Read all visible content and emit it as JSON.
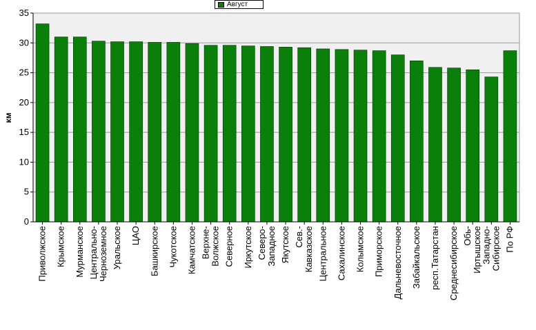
{
  "chart_data": {
    "type": "bar",
    "title": "",
    "xlabel": "",
    "ylabel": "км",
    "ylim": [
      0,
      35
    ],
    "yticks": [
      0,
      5,
      10,
      15,
      20,
      25,
      30,
      35
    ],
    "grid": true,
    "legend_position": "top-center",
    "categories": [
      "Приволжское",
      "Крымское",
      "Мурманское",
      "Центрально-\nЧерноземное",
      "Уральское",
      "ЦАО",
      "Башкирское",
      "Чукотское",
      "Камчатское",
      "Верхне-\nВолжское",
      "Северное",
      "Иркутское",
      "Северо-\nЗападное",
      "Якутское",
      "Сев.-\nКавказское",
      "Центральное",
      "Сахалинское",
      "Колымское",
      "Приморское",
      "Дальневосточное",
      "Забайкальское",
      "респ.Татарстан",
      "Среднесибирское",
      "Обь-\nИртышское",
      "Западно-\nСибирское",
      "По РФ"
    ],
    "series": [
      {
        "name": "Август",
        "color": "#0a7f0a",
        "values": [
          33.2,
          31.0,
          31.0,
          30.3,
          30.2,
          30.2,
          30.1,
          30.1,
          29.9,
          29.6,
          29.6,
          29.5,
          29.4,
          29.3,
          29.2,
          29.0,
          28.9,
          28.8,
          28.7,
          28.0,
          27.0,
          25.9,
          25.8,
          25.5,
          24.3,
          28.7
        ]
      }
    ]
  }
}
